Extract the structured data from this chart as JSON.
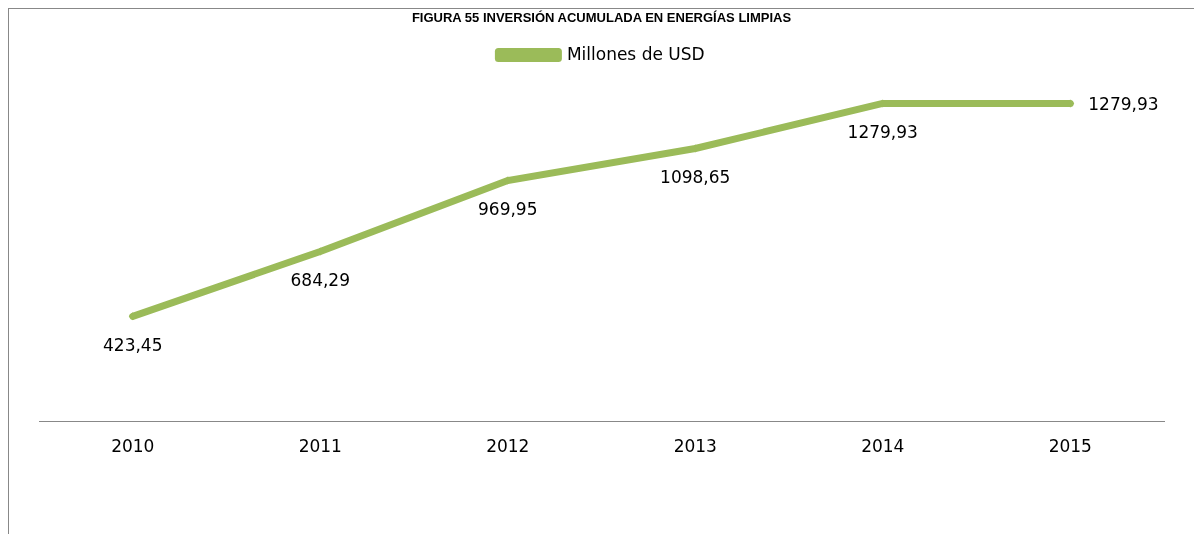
{
  "chart_data": {
    "type": "line",
    "title": "FIGURA 55 INVERSIÓN ACUMULADA EN ENERGÍAS LIMPIAS",
    "categories": [
      "2010",
      "2011",
      "2012",
      "2013",
      "2014",
      "2015"
    ],
    "series": [
      {
        "name": "Millones de USD",
        "color": "#9bbb59",
        "values": [
          423.45,
          684.29,
          969.95,
          1098.65,
          1279.93,
          1279.93
        ],
        "value_labels": [
          "423,45",
          "684,29",
          "969,95",
          "1098,65",
          "1279,93",
          "1279,93"
        ]
      }
    ],
    "legend": "top",
    "marker": "diamond",
    "grid": false,
    "tick_labels": "x"
  }
}
